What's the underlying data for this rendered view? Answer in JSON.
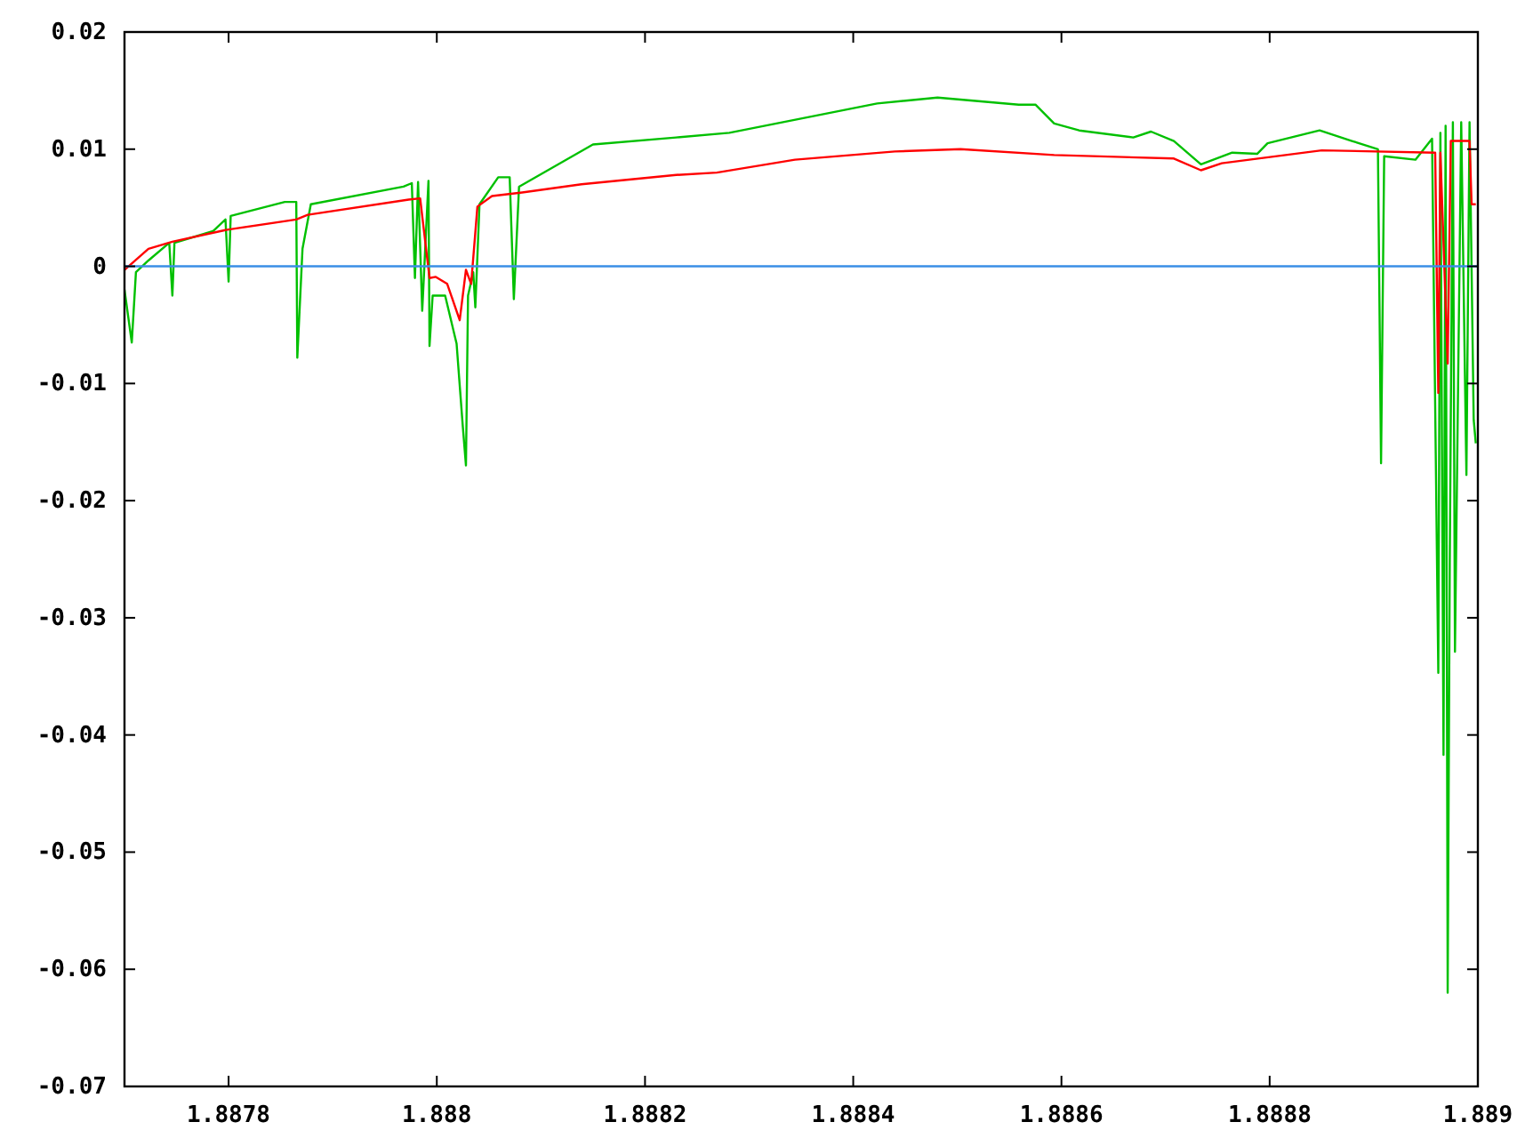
{
  "chart_data": {
    "type": "line",
    "xlim": [
      1.8877,
      1.889
    ],
    "ylim": [
      -0.07,
      0.02
    ],
    "xticks": [
      1.8878,
      1.888,
      1.8882,
      1.8884,
      1.8886,
      1.8888,
      1.889
    ],
    "yticks": [
      -0.07,
      -0.06,
      -0.05,
      -0.04,
      -0.03,
      -0.02,
      -0.01,
      0,
      0.01,
      0.02
    ],
    "marker": "none",
    "line_style": "solid",
    "series": [
      {
        "color": "#00c000",
        "x": [
          1.8877,
          1.887707,
          1.887711,
          1.887723,
          1.887743,
          1.887746,
          1.887748,
          1.887785,
          1.887797,
          1.8878,
          1.887802,
          1.887854,
          1.887865,
          1.887866,
          1.887871,
          1.887879,
          1.887968,
          1.887976,
          1.887979,
          1.887982,
          1.887986,
          1.887992,
          1.887993,
          1.887996,
          1.888008,
          1.888019,
          1.888025,
          1.888028,
          1.88803,
          1.888035,
          1.888037,
          1.888041,
          1.888059,
          1.88807,
          1.888074,
          1.888079,
          1.88815,
          1.88823,
          1.888281,
          1.888366,
          1.888423,
          1.888481,
          1.888559,
          1.888575,
          1.888593,
          1.888617,
          1.888669,
          1.888686,
          1.888708,
          1.888734,
          1.888764,
          1.888788,
          1.888798,
          1.888848,
          1.888879,
          1.888904,
          1.888907,
          1.88891,
          1.88894,
          1.888956,
          1.888962,
          1.888964,
          1.888967,
          1.888969,
          1.888971,
          1.888973,
          1.888976,
          1.888978,
          1.888981,
          1.888984,
          1.888989,
          1.888992,
          1.888996,
          1.888998
        ],
        "values": [
          -0.002,
          -0.0065,
          -0.0005,
          0.0005,
          0.002,
          -0.0025,
          0.002,
          0.003,
          0.004,
          -0.0013,
          0.0043,
          0.0055,
          0.0055,
          -0.0078,
          0.0015,
          0.0053,
          0.0068,
          0.0071,
          -0.001,
          0.0072,
          -0.0038,
          0.0073,
          -0.0068,
          -0.0025,
          -0.0025,
          -0.0066,
          -0.0137,
          -0.017,
          -0.0025,
          -0.0005,
          -0.0035,
          0.0053,
          0.0076,
          0.0076,
          -0.0028,
          0.0068,
          0.0104,
          0.011,
          0.0114,
          0.0129,
          0.0139,
          0.0144,
          0.0138,
          0.0138,
          0.0122,
          0.0116,
          0.011,
          0.0115,
          0.0107,
          0.0087,
          0.0097,
          0.0096,
          0.0105,
          0.0116,
          0.0107,
          0.01,
          -0.0168,
          0.0094,
          0.0091,
          0.0109,
          -0.0347,
          0.0114,
          -0.0417,
          0.012,
          -0.062,
          -0.0253,
          0.0123,
          -0.0329,
          -0.0102,
          0.0123,
          -0.0178,
          0.0123,
          -0.0131,
          -0.0151
        ]
      },
      {
        "color": "#ff0000",
        "x": [
          1.8877,
          1.887723,
          1.887746,
          1.887797,
          1.887865,
          1.887876,
          1.887973,
          1.887984,
          1.887993,
          1.887999,
          1.88801,
          1.888022,
          1.888028,
          1.888033,
          1.888039,
          1.888053,
          1.888082,
          1.888139,
          1.88823,
          1.888269,
          1.888344,
          1.88844,
          1.888503,
          1.888593,
          1.888708,
          1.888734,
          1.888754,
          1.88885,
          1.888959,
          1.888962,
          1.888964,
          1.888971,
          1.888974,
          1.888992,
          1.888994,
          1.888998
        ],
        "values": [
          -0.0003,
          0.0015,
          0.0021,
          0.0031,
          0.004,
          0.0044,
          0.0057,
          0.0058,
          -0.001,
          -0.0009,
          -0.0015,
          -0.0046,
          -0.0003,
          -0.0015,
          0.0051,
          0.006,
          0.0063,
          0.007,
          0.0078,
          0.008,
          0.0091,
          0.0098,
          0.01,
          0.0095,
          0.0092,
          0.0082,
          0.0088,
          0.0099,
          0.0097,
          -0.0108,
          0.0097,
          -0.0083,
          0.0107,
          0.0107,
          0.0053,
          0.0053
        ]
      },
      {
        "color": "#3a8ee6",
        "x": [
          1.8877,
          1.889
        ],
        "values": [
          0,
          0
        ]
      }
    ]
  }
}
